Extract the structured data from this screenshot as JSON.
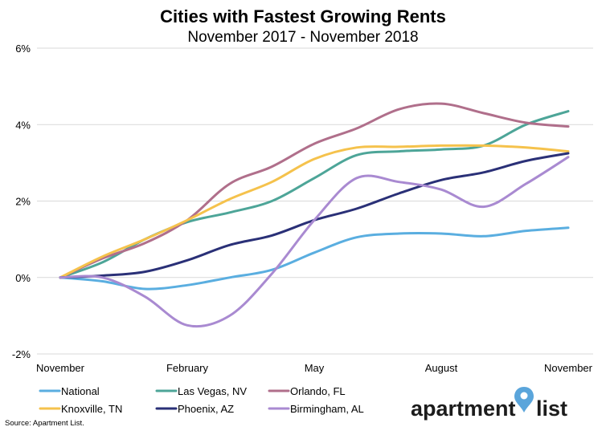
{
  "chart_data": {
    "type": "line",
    "title": "Cities with Fastest Growing Rents",
    "subtitle": "November 2017 - November 2018",
    "xlabel": "",
    "ylabel": "",
    "x": [
      "Nov 2017",
      "Dec 2017",
      "Jan 2018",
      "Feb 2018",
      "Mar 2018",
      "Apr 2018",
      "May 2018",
      "Jun 2018",
      "Jul 2018",
      "Aug 2018",
      "Sep 2018",
      "Oct 2018",
      "Nov 2018"
    ],
    "x_tick_labels": [
      {
        "index": 0,
        "label": "November"
      },
      {
        "index": 3,
        "label": "February"
      },
      {
        "index": 6,
        "label": "May"
      },
      {
        "index": 9,
        "label": "August"
      },
      {
        "index": 12,
        "label": "November"
      }
    ],
    "y_ticks": [
      {
        "value": -2,
        "label": "-2%"
      },
      {
        "value": 0,
        "label": "0%"
      },
      {
        "value": 2,
        "label": "2%"
      },
      {
        "value": 4,
        "label": "4%"
      },
      {
        "value": 6,
        "label": "6%"
      }
    ],
    "ylim": [
      -2,
      6
    ],
    "grid": "horizontal",
    "legend_position": "bottom",
    "series": [
      {
        "name": "National",
        "color": "#5aaee0",
        "values": [
          0,
          -0.1,
          -0.3,
          -0.2,
          0.0,
          0.2,
          0.65,
          1.05,
          1.15,
          1.15,
          1.08,
          1.22,
          1.3
        ]
      },
      {
        "name": "Las Vegas, NV",
        "color": "#4da598",
        "values": [
          0,
          0.4,
          1.0,
          1.45,
          1.7,
          2.0,
          2.6,
          3.2,
          3.3,
          3.35,
          3.45,
          4.0,
          4.35
        ]
      },
      {
        "name": "Orlando, FL",
        "color": "#b06f8b",
        "values": [
          0,
          0.5,
          0.9,
          1.5,
          2.45,
          2.9,
          3.5,
          3.9,
          4.4,
          4.55,
          4.3,
          4.05,
          3.95
        ]
      },
      {
        "name": "Knoxville, TN",
        "color": "#f5c24c",
        "values": [
          0,
          0.55,
          1.0,
          1.5,
          2.05,
          2.5,
          3.1,
          3.4,
          3.42,
          3.45,
          3.45,
          3.4,
          3.3
        ]
      },
      {
        "name": "Phoenix, AZ",
        "color": "#2a3077",
        "values": [
          0,
          0.05,
          0.15,
          0.45,
          0.85,
          1.1,
          1.5,
          1.8,
          2.2,
          2.55,
          2.75,
          3.05,
          3.25
        ]
      },
      {
        "name": "Birmingham, AL",
        "color": "#a98ad1",
        "values": [
          0,
          0.0,
          -0.5,
          -1.25,
          -1.0,
          0.1,
          1.5,
          2.6,
          2.5,
          2.3,
          1.85,
          2.45,
          3.15
        ]
      }
    ]
  },
  "logo": {
    "text_left": "apartment",
    "text_right": "list",
    "pin_color": "#5aa5db",
    "icon": "location-pin-icon"
  },
  "source": "Source: Apartment List."
}
